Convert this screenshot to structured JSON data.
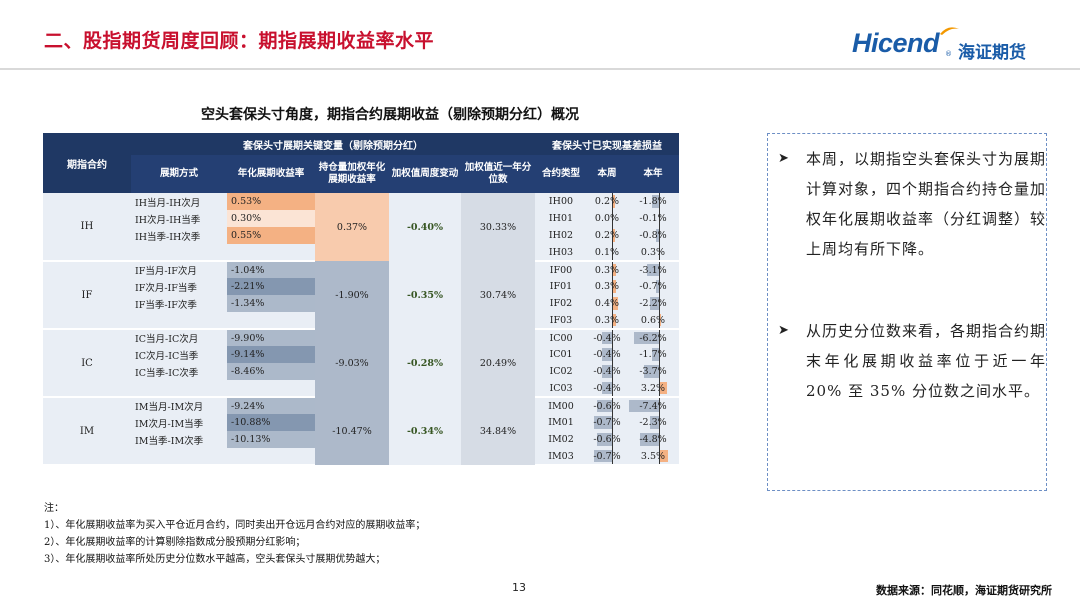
{
  "header": {
    "title": "二、股指期货周度回顾：期指展期收益率水平",
    "logo_en": "Hicend",
    "logo_reg": "®",
    "logo_cn": "海证期货"
  },
  "table_title": "空头套保头寸角度，期指合约展期收益（剔除预期分红）概况",
  "table": {
    "header_group1": "套保头寸展期关键变量（剔除预期分红）",
    "header_group2": "套保头寸已实现基差损益",
    "col_contract": "期指合约",
    "col_spread": "展期方式",
    "col_annual": "年化展期收益率",
    "col_weighted": "持仓量加权年化展期收益率",
    "col_weekly_change": "加权值周度变动",
    "col_percentile": "加权值近一年分位数",
    "col_type": "合约类型",
    "col_week": "本周",
    "col_year": "本年",
    "groups": [
      {
        "name": "IH",
        "spreads": [
          "IH当月-IH次月",
          "IH次月-IH当季",
          "IH当季-IH次季"
        ],
        "annual": [
          "0.53%",
          "0.30%",
          "0.55%"
        ],
        "weighted": "0.37%",
        "weekly_change": "-0.40%",
        "percentile": "30.33%",
        "contracts": [
          "IH00",
          "IH01",
          "IH02",
          "IH03"
        ],
        "week": [
          "0.2%",
          "0.0%",
          "0.2%",
          "0.1%"
        ],
        "year": [
          "-1.8%",
          "-0.1%",
          "-0.8%",
          "0.3%"
        ],
        "week_num": [
          0.2,
          0.0,
          0.2,
          0.1
        ],
        "year_num": [
          -1.8,
          -0.1,
          -0.8,
          0.3
        ]
      },
      {
        "name": "IF",
        "spreads": [
          "IF当月-IF次月",
          "IF次月-IF当季",
          "IF当季-IF次季"
        ],
        "annual": [
          "-1.04%",
          "-2.21%",
          "-1.34%"
        ],
        "weighted": "-1.90%",
        "weekly_change": "-0.35%",
        "percentile": "30.74%",
        "contracts": [
          "IF00",
          "IF01",
          "IF02",
          "IF03"
        ],
        "week": [
          "0.3%",
          "0.3%",
          "0.4%",
          "0.3%"
        ],
        "year": [
          "-3.1%",
          "-0.7%",
          "-2.2%",
          "0.6%"
        ],
        "week_num": [
          0.3,
          0.3,
          0.4,
          0.3
        ],
        "year_num": [
          -3.1,
          -0.7,
          -2.2,
          0.6
        ]
      },
      {
        "name": "IC",
        "spreads": [
          "IC当月-IC次月",
          "IC次月-IC当季",
          "IC当季-IC次季"
        ],
        "annual": [
          "-9.90%",
          "-9.14%",
          "-8.46%"
        ],
        "weighted": "-9.03%",
        "weekly_change": "-0.28%",
        "percentile": "20.49%",
        "contracts": [
          "IC00",
          "IC01",
          "IC02",
          "IC03"
        ],
        "week": [
          "-0.4%",
          "-0.4%",
          "-0.4%",
          "-0.4%"
        ],
        "year": [
          "-6.2%",
          "-1.7%",
          "-3.7%",
          "3.2%"
        ],
        "week_num": [
          -0.4,
          -0.4,
          -0.4,
          -0.4
        ],
        "year_num": [
          -6.2,
          -1.7,
          -3.7,
          3.2
        ]
      },
      {
        "name": "IM",
        "spreads": [
          "IM当月-IM次月",
          "IM次月-IM当季",
          "IM当季-IM次季"
        ],
        "annual": [
          "-9.24%",
          "-10.88%",
          "-10.13%"
        ],
        "weighted": "-10.47%",
        "weekly_change": "-0.34%",
        "percentile": "34.84%",
        "contracts": [
          "IM00",
          "IM01",
          "IM02",
          "IM03"
        ],
        "week": [
          "-0.6%",
          "-0.7%",
          "-0.6%",
          "-0.7%"
        ],
        "year": [
          "-7.4%",
          "-2.3%",
          "-4.8%",
          "3.5%"
        ],
        "week_num": [
          -0.6,
          -0.7,
          -0.6,
          -0.7
        ],
        "year_num": [
          -7.4,
          -2.3,
          -4.8,
          3.5
        ]
      }
    ]
  },
  "commentary": {
    "bullet_symbol": "➤",
    "p1": "本周，以期指空头套保头寸为展期计算对象，四个期指合约持仓量加权年化展期收益率（分红调整）较上周均有所下降。",
    "p2": "从历史分位数来看，各期指合约期末年化展期收益率位于近一年 20% 至 35% 分位数之间水平。"
  },
  "notes": {
    "title": "注：",
    "n1": "1）、年化展期收益率为买入平仓近月合约，同时卖出开仓远月合约对应的展期收益率；",
    "n2": "2）、年化展期收益率的计算剔除指数成分股预期分红影响；",
    "n3": "3）、年化展期收益率所处历史分位数水平越高，空头套保头寸展期优势越大；"
  },
  "footer": {
    "page": "13",
    "source": "数据来源：同花顺，海证期货研究所"
  },
  "colors": {
    "title_red": "#c8102e",
    "header_navy": "#1f3864",
    "logo_blue": "#1a5ca8",
    "positive_orange": "#f4b183",
    "negative_blue": "#adb9ca"
  }
}
